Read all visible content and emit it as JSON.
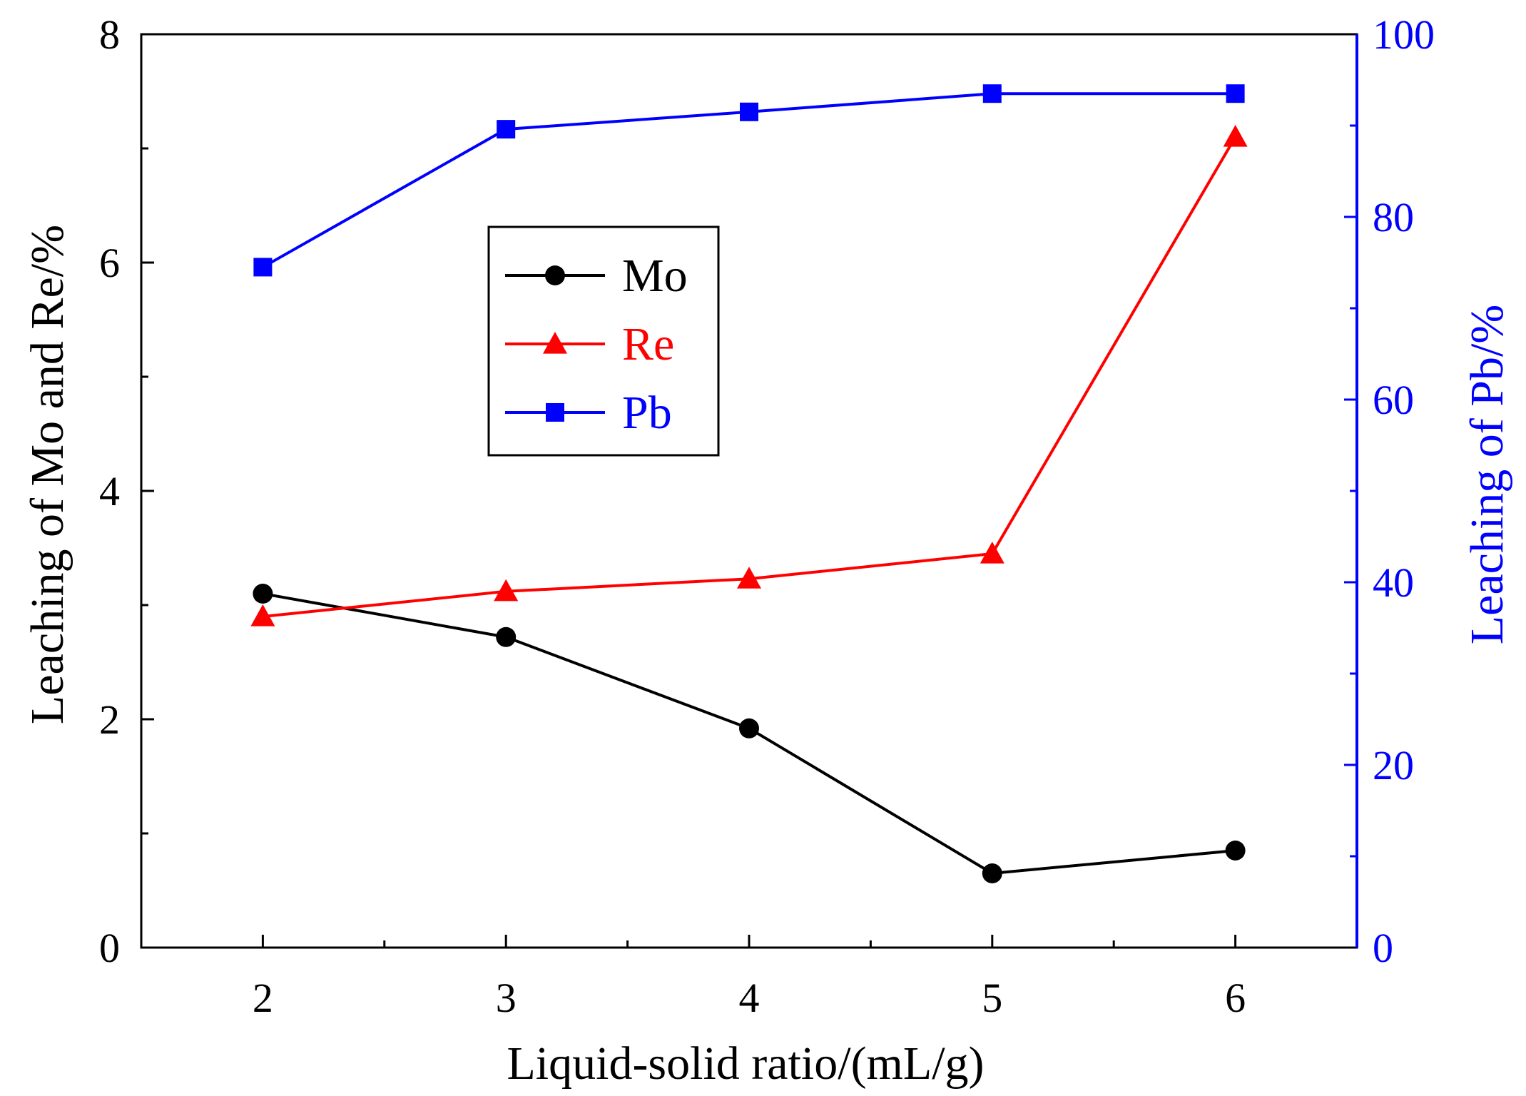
{
  "chart_data": {
    "type": "line",
    "title": "",
    "xlabel": "Liquid-solid ratio/(mL/g)",
    "ylabel_left": "Leaching of Mo and Re/%",
    "ylabel_right": "Leaching of Pb/%",
    "x": [
      2,
      3,
      4,
      5,
      6
    ],
    "x_ticks": [
      "2",
      "3",
      "4",
      "5",
      "6"
    ],
    "xlim": [
      1.5,
      6.5
    ],
    "ylim_left": [
      0,
      8
    ],
    "ylim_right": [
      0,
      100
    ],
    "y_ticks_left": [
      "0",
      "2",
      "4",
      "6",
      "8"
    ],
    "y_ticks_right": [
      "0",
      "20",
      "40",
      "60",
      "80",
      "100"
    ],
    "legend_position": "upper-left-center",
    "series": [
      {
        "name": "Mo",
        "axis": "left",
        "marker": "circle",
        "color": "#000000",
        "values": [
          3.1,
          2.72,
          1.92,
          0.65,
          0.85
        ]
      },
      {
        "name": "Re",
        "axis": "left",
        "marker": "triangle",
        "color": "#ff0000",
        "values": [
          2.9,
          3.12,
          3.23,
          3.45,
          7.1
        ]
      },
      {
        "name": "Pb",
        "axis": "right",
        "marker": "square",
        "color": "#0000ff",
        "values": [
          74.5,
          89.6,
          91.5,
          93.5,
          93.5
        ]
      }
    ]
  }
}
